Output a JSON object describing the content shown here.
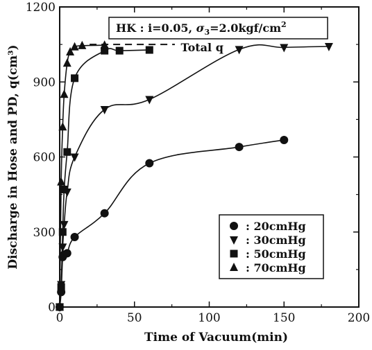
{
  "chart_data": {
    "type": "line",
    "xlabel": "Time of Vacuum(min)",
    "ylabel": "Discharge in Hose and PD, q(cm³)",
    "xlim": [
      0,
      200
    ],
    "ylim": [
      0,
      1200
    ],
    "xticks": [
      0,
      50,
      100,
      150,
      200
    ],
    "yticks": [
      0,
      300,
      600,
      900,
      1200
    ],
    "grid": false,
    "legend_placement": "bottom-right",
    "condition_box": {
      "prefix": "HK : i=0.05, ",
      "sigma": "σ",
      "sigma_sub": "3",
      "value": "=2.0kgf/cm",
      "exp": "2"
    },
    "reference_line": {
      "label": "Total q",
      "y": 1050
    },
    "series": [
      {
        "name": ": 20cmHg",
        "marker": "circle",
        "x": [
          0,
          1,
          2,
          3,
          5,
          10,
          30,
          60,
          120,
          150
        ],
        "y": [
          0,
          60,
          200,
          210,
          215,
          280,
          375,
          575,
          640,
          668
        ]
      },
      {
        "name": ": 30cmHg",
        "marker": "triangle-down",
        "x": [
          0,
          1,
          2,
          3,
          5,
          10,
          30,
          60,
          120,
          150,
          180
        ],
        "y": [
          0,
          90,
          240,
          330,
          460,
          600,
          790,
          830,
          1030,
          1038,
          1042
        ]
      },
      {
        "name": ": 50cmHg",
        "marker": "square",
        "x": [
          0,
          1,
          2,
          3,
          5,
          10,
          30,
          40,
          60
        ],
        "y": [
          0,
          80,
          300,
          470,
          620,
          915,
          1025,
          1025,
          1028
        ]
      },
      {
        "name": ": 70cmHg",
        "marker": "triangle-up",
        "x": [
          0,
          1,
          2,
          3,
          5,
          7,
          10,
          15,
          30
        ],
        "y": [
          0,
          500,
          720,
          850,
          975,
          1020,
          1040,
          1045,
          1047
        ]
      }
    ]
  }
}
